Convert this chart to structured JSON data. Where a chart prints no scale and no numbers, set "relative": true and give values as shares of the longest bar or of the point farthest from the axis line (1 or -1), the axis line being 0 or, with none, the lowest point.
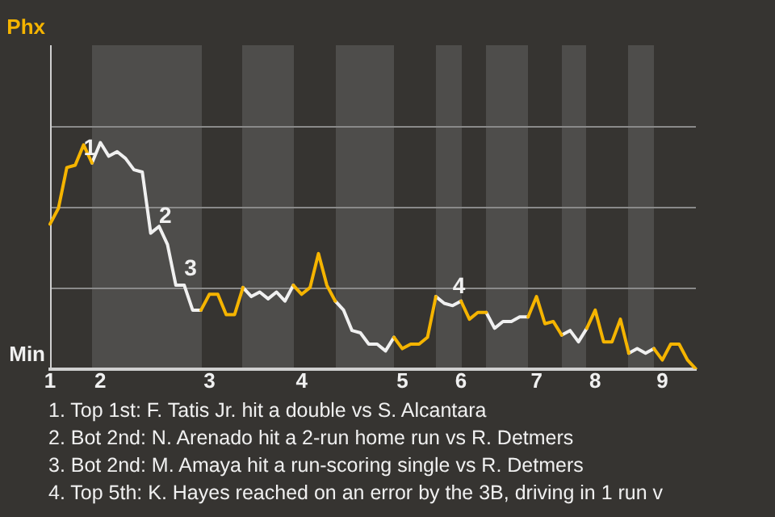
{
  "chart_data": {
    "type": "line",
    "relative": true,
    "categories": [
      "1",
      null,
      null,
      null,
      null,
      null,
      "2",
      null,
      null,
      null,
      null,
      null,
      null,
      null,
      null,
      null,
      null,
      null,
      null,
      "3",
      null,
      null,
      null,
      null,
      null,
      null,
      null,
      null,
      null,
      null,
      "4",
      null,
      null,
      null,
      null,
      null,
      null,
      null,
      null,
      null,
      null,
      null,
      "5",
      null,
      null,
      null,
      null,
      null,
      null,
      "6",
      null,
      null,
      null,
      null,
      null,
      null,
      null,
      null,
      "7",
      null,
      null,
      null,
      null,
      null,
      null,
      "8",
      null,
      null,
      null,
      null,
      null,
      null,
      null,
      "9",
      null,
      null,
      null,
      null
    ],
    "legend": false,
    "marker": "none",
    "ref_lines": [
      {
        "axis": "y",
        "value": 0.357,
        "color": "#8a8a8a"
      },
      {
        "axis": "y",
        "value": 0.714,
        "color": "#8a8a8a"
      },
      {
        "axis": "y",
        "value": 1.071,
        "color": "#8a8a8a"
      }
    ],
    "series": [
      {
        "color": "#f5b400",
        "values": [
          0.64,
          0.71,
          0.89,
          0.9,
          0.99,
          0.91,
          null,
          null,
          null,
          null,
          null,
          null,
          null,
          null,
          null,
          null,
          null,
          null,
          0.26,
          0.33,
          0.33,
          0.24,
          0.24,
          0.36,
          null,
          null,
          null,
          null,
          null,
          0.37,
          0.33,
          0.36,
          0.51,
          0.37,
          0.3,
          null,
          null,
          null,
          null,
          null,
          null,
          0.14,
          0.09,
          0.11,
          0.11,
          0.14,
          0.32,
          null,
          null,
          0.3,
          0.22,
          0.25,
          0.25,
          null,
          null,
          null,
          null,
          0.23,
          0.32,
          0.2,
          0.21,
          0.15,
          null,
          null,
          0.18,
          0.26,
          0.12,
          0.12,
          0.22,
          0.07,
          null,
          null,
          0.09,
          0.04,
          0.11,
          0.11,
          0.04,
          0
        ]
      },
      {
        "color": "#f0f0f0",
        "values": [
          null,
          null,
          null,
          null,
          null,
          0.91,
          1,
          0.94,
          0.96,
          0.93,
          0.88,
          0.87,
          0.6,
          0.63,
          0.55,
          0.37,
          0.37,
          0.26,
          0.26,
          null,
          null,
          null,
          null,
          0.36,
          0.32,
          0.34,
          0.31,
          0.34,
          0.3,
          0.37,
          null,
          null,
          null,
          null,
          0.3,
          0.26,
          0.17,
          0.16,
          0.11,
          0.11,
          0.08,
          0.14,
          null,
          null,
          null,
          null,
          0.32,
          0.29,
          0.28,
          0.3,
          null,
          null,
          0.25,
          0.18,
          0.21,
          0.21,
          0.23,
          0.23,
          null,
          null,
          null,
          0.15,
          0.17,
          0.12,
          0.18,
          null,
          null,
          null,
          null,
          0.07,
          0.09,
          0.07,
          0.09,
          null,
          null,
          null,
          null,
          null
        ]
      }
    ],
    "annotations": [
      "Phx",
      "Min",
      {
        "text": "1",
        "y": 0.9
      },
      {
        "text": "2",
        "y": 0.6
      },
      {
        "text": "3",
        "y": 0.37
      },
      {
        "text": "4",
        "y": 0.29
      },
      "1. Top 1st: F. Tatis Jr. hit a double vs S. Alcantara",
      "2. Bot 2nd: N. Arenado hit a 2-run home run vs R. Detmers",
      "3. Bot 2nd: M. Amaya hit a run-scoring single vs R. Detmers",
      "4. Top 5th: K. Hayes reached on an error by the 3B, driving in 1 run v"
    ]
  }
}
